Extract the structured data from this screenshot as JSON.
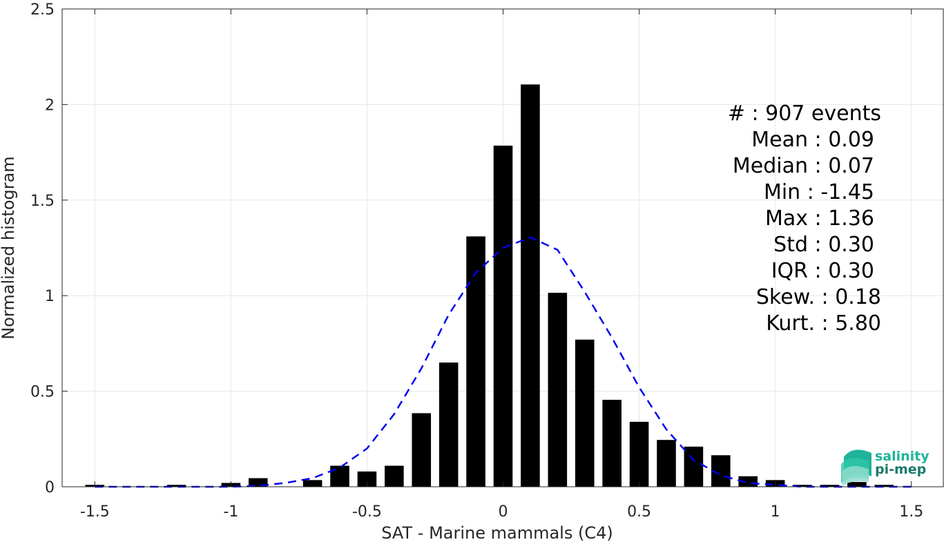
{
  "chart_data": {
    "type": "bar",
    "xlabel": "SAT - Marine mammals (C4)",
    "ylabel": "Normalized histogram",
    "xlim": [
      -1.62,
      1.62
    ],
    "ylim": [
      0,
      2.5
    ],
    "xticks": [
      -1.5,
      -1,
      -0.5,
      0,
      0.5,
      1,
      1.5
    ],
    "xtick_labels": [
      "-1.5",
      "-1",
      "-0.5",
      "0",
      "0.5",
      "1",
      "1.5"
    ],
    "yticks": [
      0,
      0.5,
      1,
      1.5,
      2,
      2.5
    ],
    "ytick_labels": [
      "0",
      "0.5",
      "1",
      "1.5",
      "2",
      "2.5"
    ],
    "grid": true,
    "bar_color": "#000000",
    "bin_width": 0.1,
    "bins": [
      -1.5,
      -1.2,
      -1.0,
      -0.9,
      -0.7,
      -0.6,
      -0.5,
      -0.4,
      -0.3,
      -0.2,
      -0.1,
      0.0,
      0.1,
      0.2,
      0.3,
      0.4,
      0.5,
      0.6,
      0.7,
      0.8,
      0.9,
      1.0,
      1.1,
      1.2,
      1.3,
      1.4
    ],
    "values": [
      0.01,
      0.01,
      0.02,
      0.045,
      0.035,
      0.11,
      0.08,
      0.11,
      0.385,
      0.65,
      1.31,
      1.785,
      2.105,
      1.015,
      0.77,
      0.455,
      0.34,
      0.245,
      0.21,
      0.165,
      0.055,
      0.035,
      0.01,
      0.01,
      0.025,
      0.01
    ],
    "fit_curve": {
      "style": "dashed",
      "color": "#0000ee",
      "x": [
        -1.5,
        -1.4,
        -1.3,
        -1.2,
        -1.1,
        -1.0,
        -0.9,
        -0.8,
        -0.7,
        -0.6,
        -0.5,
        -0.4,
        -0.3,
        -0.2,
        -0.1,
        0.0,
        0.1,
        0.2,
        0.3,
        0.4,
        0.5,
        0.6,
        0.7,
        0.8,
        0.9,
        1.0,
        1.1,
        1.2,
        1.3,
        1.4,
        1.5
      ],
      "y": [
        0.0,
        0.0,
        0.0,
        0.0,
        0.0,
        0.0,
        0.005,
        0.02,
        0.045,
        0.1,
        0.2,
        0.38,
        0.62,
        0.9,
        1.12,
        1.25,
        1.305,
        1.24,
        1.02,
        0.78,
        0.52,
        0.3,
        0.14,
        0.06,
        0.02,
        0.01,
        0.0,
        0.0,
        0.0,
        0.0,
        0.0
      ]
    }
  },
  "stats": [
    {
      "label": "#  : 907 events"
    },
    {
      "label": "Mean : 0.09"
    },
    {
      "label": "Median : 0.07"
    },
    {
      "label": "Min : -1.45"
    },
    {
      "label": "Max : 1.36"
    },
    {
      "label": "Std : 0.30"
    },
    {
      "label": "IQR : 0.30"
    },
    {
      "label": "Skew. : 0.18"
    },
    {
      "label": "Kurt. : 5.80"
    }
  ],
  "logo": {
    "line1": "salinity",
    "line2": "pi-mep",
    "color1": "#1fb39a",
    "color2": "#1a7a6a"
  }
}
